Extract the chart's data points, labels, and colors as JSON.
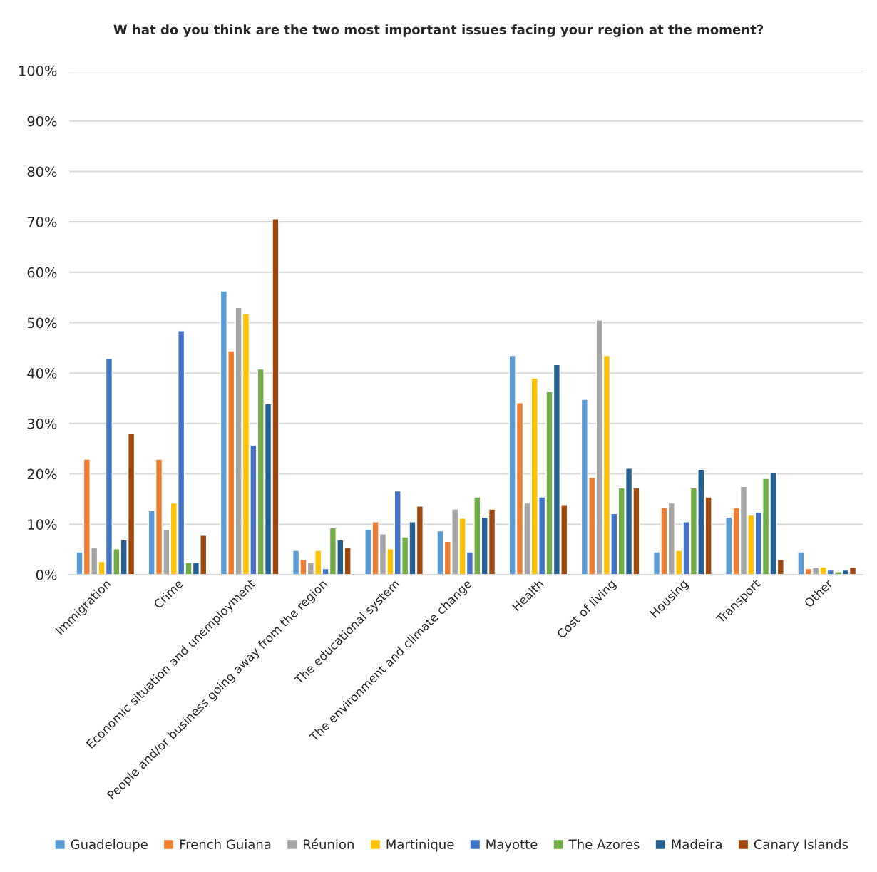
{
  "chart_data": {
    "type": "bar",
    "title": "W hat do you think are the two most important issues facing your region at the moment?",
    "categories": [
      "Immigration",
      "Crime",
      "Economic situation and unemployment",
      "People and/or business going away from the region",
      "The educational system",
      "The environment and climate change",
      "Health",
      "Cost of living",
      "Housing",
      "Transport",
      "Other"
    ],
    "series": [
      {
        "name": "Guadeloupe",
        "color": "#5b9bd5",
        "values": [
          4.5,
          12.7,
          56.3,
          4.8,
          9.0,
          8.7,
          43.5,
          34.8,
          4.5,
          11.4,
          4.5
        ]
      },
      {
        "name": "French Guiana",
        "color": "#ed7d31",
        "values": [
          22.9,
          22.9,
          44.4,
          3.0,
          10.5,
          6.6,
          34.1,
          19.3,
          13.3,
          13.3,
          1.2
        ]
      },
      {
        "name": "Réunion",
        "color": "#a5a5a5",
        "values": [
          5.4,
          9.0,
          53.0,
          2.4,
          8.1,
          13.0,
          14.2,
          50.5,
          14.2,
          17.5,
          1.5
        ]
      },
      {
        "name": "Martinique",
        "color": "#ffc000",
        "values": [
          2.6,
          14.2,
          51.8,
          4.8,
          5.1,
          11.2,
          39.0,
          43.5,
          4.8,
          11.8,
          1.5
        ]
      },
      {
        "name": "Mayotte",
        "color": "#4472c4",
        "values": [
          42.9,
          48.4,
          25.7,
          1.2,
          16.6,
          4.5,
          15.4,
          12.1,
          10.5,
          12.4,
          0.9
        ]
      },
      {
        "name": "The Azores",
        "color": "#70ad47",
        "values": [
          5.1,
          2.4,
          40.8,
          9.3,
          7.5,
          15.4,
          36.3,
          17.2,
          17.2,
          19.1,
          0.6
        ]
      },
      {
        "name": "Madeira",
        "color": "#255e91",
        "values": [
          6.9,
          2.4,
          33.9,
          6.9,
          10.5,
          11.4,
          41.7,
          21.1,
          20.9,
          20.2,
          0.9
        ]
      },
      {
        "name": "Canary Islands",
        "color": "#9e480e",
        "values": [
          28.1,
          7.8,
          70.6,
          5.4,
          13.6,
          13.0,
          13.9,
          17.2,
          15.4,
          3.0,
          1.5
        ]
      }
    ],
    "ylim": [
      0,
      100
    ],
    "yticks": [
      {
        "value": 0,
        "label": "0%"
      },
      {
        "value": 10,
        "label": "10%"
      },
      {
        "value": 20,
        "label": "20%"
      },
      {
        "value": 30,
        "label": "30%"
      },
      {
        "value": 40,
        "label": "40%"
      },
      {
        "value": 50,
        "label": "50%"
      },
      {
        "value": 60,
        "label": "60%"
      },
      {
        "value": 70,
        "label": "70%"
      },
      {
        "value": 80,
        "label": "80%"
      },
      {
        "value": 90,
        "label": "90%"
      },
      {
        "value": 100,
        "label": "100%"
      }
    ],
    "grid": "y",
    "legend": "bottom"
  }
}
